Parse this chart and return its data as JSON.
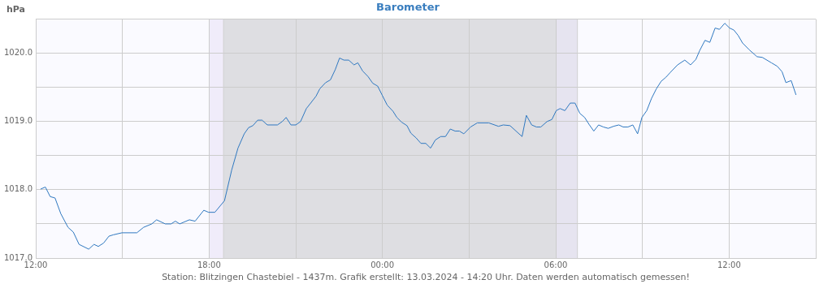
{
  "chart_data": {
    "type": "line",
    "title": "Barometer",
    "ylabel": "hPa",
    "annotations": [
      "Station: Blitzingen Chastebiel - 1437m. Grafik erstellt: 13.03.2024 - 14:20 Uhr. Daten werden automatisch gemessen!"
    ],
    "xlim": [
      "2024-03-12T12:00",
      "2024-03-13T15:00"
    ],
    "xticks": [
      {
        "value": "2024-03-12T12:00",
        "label": "12:00"
      },
      {
        "value": "2024-03-12T15:00",
        "label": null
      },
      {
        "value": "2024-03-12T18:00",
        "label": "18:00"
      },
      {
        "value": "2024-03-12T21:00",
        "label": null
      },
      {
        "value": "2024-03-13T00:00",
        "label": "00:00"
      },
      {
        "value": "2024-03-13T03:00",
        "label": null
      },
      {
        "value": "2024-03-13T06:00",
        "label": "06:00"
      },
      {
        "value": "2024-03-13T09:00",
        "label": null
      },
      {
        "value": "2024-03-13T12:00",
        "label": "12:00"
      },
      {
        "value": "2024-03-13T15:00",
        "label": null
      }
    ],
    "ylim": [
      1017,
      1020.5
    ],
    "yticks": [
      {
        "value": 1017,
        "label": "1017.0"
      },
      {
        "value": 1017.5,
        "label": null
      },
      {
        "value": 1018,
        "label": "1018.0"
      },
      {
        "value": 1018.5,
        "label": null
      },
      {
        "value": 1019,
        "label": "1019.0"
      },
      {
        "value": 1019.5,
        "label": null
      },
      {
        "value": 1020,
        "label": "1020.0"
      },
      {
        "value": 1020.5,
        "label": null
      }
    ],
    "grid": true,
    "marker": "none",
    "line_style": "solid",
    "bands": [
      {
        "axis": "x",
        "from": "2024-03-12T18:00",
        "to": "2024-03-12T18:30",
        "color": "#f0ecfa"
      },
      {
        "axis": "x",
        "from": "2024-03-12T18:30",
        "to": "2024-03-13T06:00",
        "color": "#dedee2"
      },
      {
        "axis": "x",
        "from": "2024-03-13T06:00",
        "to": "2024-03-13T06:45",
        "color": "#e6e4f0"
      }
    ],
    "ref_lines": [
      {
        "axis": "x",
        "value": "2024-03-12T18:30",
        "color": "#d0d0d0"
      },
      {
        "axis": "x",
        "value": "2024-03-13T06:45",
        "color": "#d0d0d0"
      }
    ],
    "series": [
      {
        "color": "#2f78c0",
        "x": [
          "2024-03-12T12:10",
          "2024-03-12T12:20",
          "2024-03-12T12:30",
          "2024-03-12T12:40",
          "2024-03-12T12:52",
          "2024-03-12T13:07",
          "2024-03-12T13:18",
          "2024-03-12T13:30",
          "2024-03-12T13:50",
          "2024-03-12T14:01",
          "2024-03-12T14:10",
          "2024-03-12T14:21",
          "2024-03-12T14:32",
          "2024-03-12T14:41",
          "2024-03-12T14:59",
          "2024-03-12T15:30",
          "2024-03-12T15:44",
          "2024-03-12T16:01",
          "2024-03-12T16:11",
          "2024-03-12T16:29",
          "2024-03-12T16:41",
          "2024-03-12T16:50",
          "2024-03-12T16:59",
          "2024-03-12T17:19",
          "2024-03-12T17:31",
          "2024-03-12T17:49",
          "2024-03-12T17:59",
          "2024-03-12T18:12",
          "2024-03-12T18:32",
          "2024-03-12T18:47",
          "2024-03-12T19:00",
          "2024-03-12T19:13",
          "2024-03-12T19:22",
          "2024-03-12T19:31",
          "2024-03-12T19:41",
          "2024-03-12T19:50",
          "2024-03-12T20:01",
          "2024-03-12T20:22",
          "2024-03-12T20:32",
          "2024-03-12T20:40",
          "2024-03-12T20:50",
          "2024-03-12T21:00",
          "2024-03-12T21:10",
          "2024-03-12T21:22",
          "2024-03-12T21:31",
          "2024-03-12T21:42",
          "2024-03-12T21:50",
          "2024-03-12T22:02",
          "2024-03-12T22:12",
          "2024-03-12T22:22",
          "2024-03-12T22:31",
          "2024-03-12T22:40",
          "2024-03-12T22:50",
          "2024-03-12T23:01",
          "2024-03-12T23:09",
          "2024-03-12T23:19",
          "2024-03-12T23:30",
          "2024-03-12T23:40",
          "2024-03-12T23:50",
          "2024-03-13T00:00",
          "2024-03-13T00:10",
          "2024-03-13T00:22",
          "2024-03-13T00:30",
          "2024-03-13T00:40",
          "2024-03-13T00:51",
          "2024-03-13T00:59",
          "2024-03-13T01:10",
          "2024-03-13T01:20",
          "2024-03-13T01:30",
          "2024-03-13T01:40",
          "2024-03-13T01:50",
          "2024-03-13T02:01",
          "2024-03-13T02:11",
          "2024-03-13T02:21",
          "2024-03-13T02:31",
          "2024-03-13T02:40",
          "2024-03-13T02:49",
          "2024-03-13T03:03",
          "2024-03-13T03:17",
          "2024-03-13T03:41",
          "2024-03-13T04:01",
          "2024-03-13T04:11",
          "2024-03-13T04:25",
          "2024-03-13T04:50",
          "2024-03-13T04:59",
          "2024-03-13T05:10",
          "2024-03-13T05:20",
          "2024-03-13T05:29",
          "2024-03-13T05:42",
          "2024-03-13T05:52",
          "2024-03-13T06:01",
          "2024-03-13T06:09",
          "2024-03-13T06:19",
          "2024-03-13T06:30",
          "2024-03-13T06:40",
          "2024-03-13T06:50",
          "2024-03-13T07:00",
          "2024-03-13T07:09",
          "2024-03-13T07:19",
          "2024-03-13T07:29",
          "2024-03-13T07:39",
          "2024-03-13T07:49",
          "2024-03-13T08:00",
          "2024-03-13T08:11",
          "2024-03-13T08:20",
          "2024-03-13T08:30",
          "2024-03-13T08:40",
          "2024-03-13T08:50",
          "2024-03-13T08:59",
          "2024-03-13T09:09",
          "2024-03-13T09:19",
          "2024-03-13T09:29",
          "2024-03-13T09:39",
          "2024-03-13T09:49",
          "2024-03-13T09:58",
          "2024-03-13T10:13",
          "2024-03-13T10:28",
          "2024-03-13T10:40",
          "2024-03-13T10:51",
          "2024-03-13T10:59",
          "2024-03-13T11:10",
          "2024-03-13T11:20",
          "2024-03-13T11:31",
          "2024-03-13T11:40",
          "2024-03-13T11:51",
          "2024-03-13T12:01",
          "2024-03-13T12:10",
          "2024-03-13T12:19",
          "2024-03-13T12:28",
          "2024-03-13T12:42",
          "2024-03-13T12:58",
          "2024-03-13T13:09",
          "2024-03-13T13:28",
          "2024-03-13T13:40",
          "2024-03-13T13:50",
          "2024-03-13T13:58",
          "2024-03-13T14:09",
          "2024-03-13T14:19"
        ],
        "values": [
          1018.01,
          1018.04,
          1017.9,
          1017.88,
          1017.65,
          1017.45,
          1017.38,
          1017.2,
          1017.13,
          1017.2,
          1017.17,
          1017.22,
          1017.32,
          1017.34,
          1017.37,
          1017.37,
          1017.45,
          1017.5,
          1017.56,
          1017.5,
          1017.5,
          1017.54,
          1017.5,
          1017.56,
          1017.54,
          1017.7,
          1017.67,
          1017.67,
          1017.84,
          1018.29,
          1018.61,
          1018.82,
          1018.91,
          1018.94,
          1019.02,
          1019.02,
          1018.95,
          1018.95,
          1019.0,
          1019.06,
          1018.95,
          1018.95,
          1019.0,
          1019.19,
          1019.27,
          1019.37,
          1019.48,
          1019.57,
          1019.61,
          1019.76,
          1019.93,
          1019.9,
          1019.9,
          1019.83,
          1019.86,
          1019.74,
          1019.66,
          1019.56,
          1019.52,
          1019.38,
          1019.24,
          1019.15,
          1019.06,
          1018.99,
          1018.94,
          1018.83,
          1018.76,
          1018.68,
          1018.68,
          1018.61,
          1018.73,
          1018.78,
          1018.78,
          1018.89,
          1018.86,
          1018.86,
          1018.82,
          1018.92,
          1018.98,
          1018.98,
          1018.93,
          1018.95,
          1018.94,
          1018.78,
          1019.09,
          1018.95,
          1018.92,
          1018.92,
          1019.0,
          1019.03,
          1019.16,
          1019.19,
          1019.16,
          1019.27,
          1019.27,
          1019.12,
          1019.06,
          1018.96,
          1018.86,
          1018.95,
          1018.92,
          1018.9,
          1018.93,
          1018.95,
          1018.92,
          1018.92,
          1018.95,
          1018.82,
          1019.06,
          1019.16,
          1019.34,
          1019.48,
          1019.59,
          1019.65,
          1019.72,
          1019.83,
          1019.9,
          1019.83,
          1019.91,
          1020.04,
          1020.19,
          1020.16,
          1020.37,
          1020.35,
          1020.44,
          1020.37,
          1020.34,
          1020.26,
          1020.15,
          1020.05,
          1019.95,
          1019.94,
          1019.86,
          1019.81,
          1019.73,
          1019.57,
          1019.6,
          1019.39
        ]
      }
    ]
  }
}
